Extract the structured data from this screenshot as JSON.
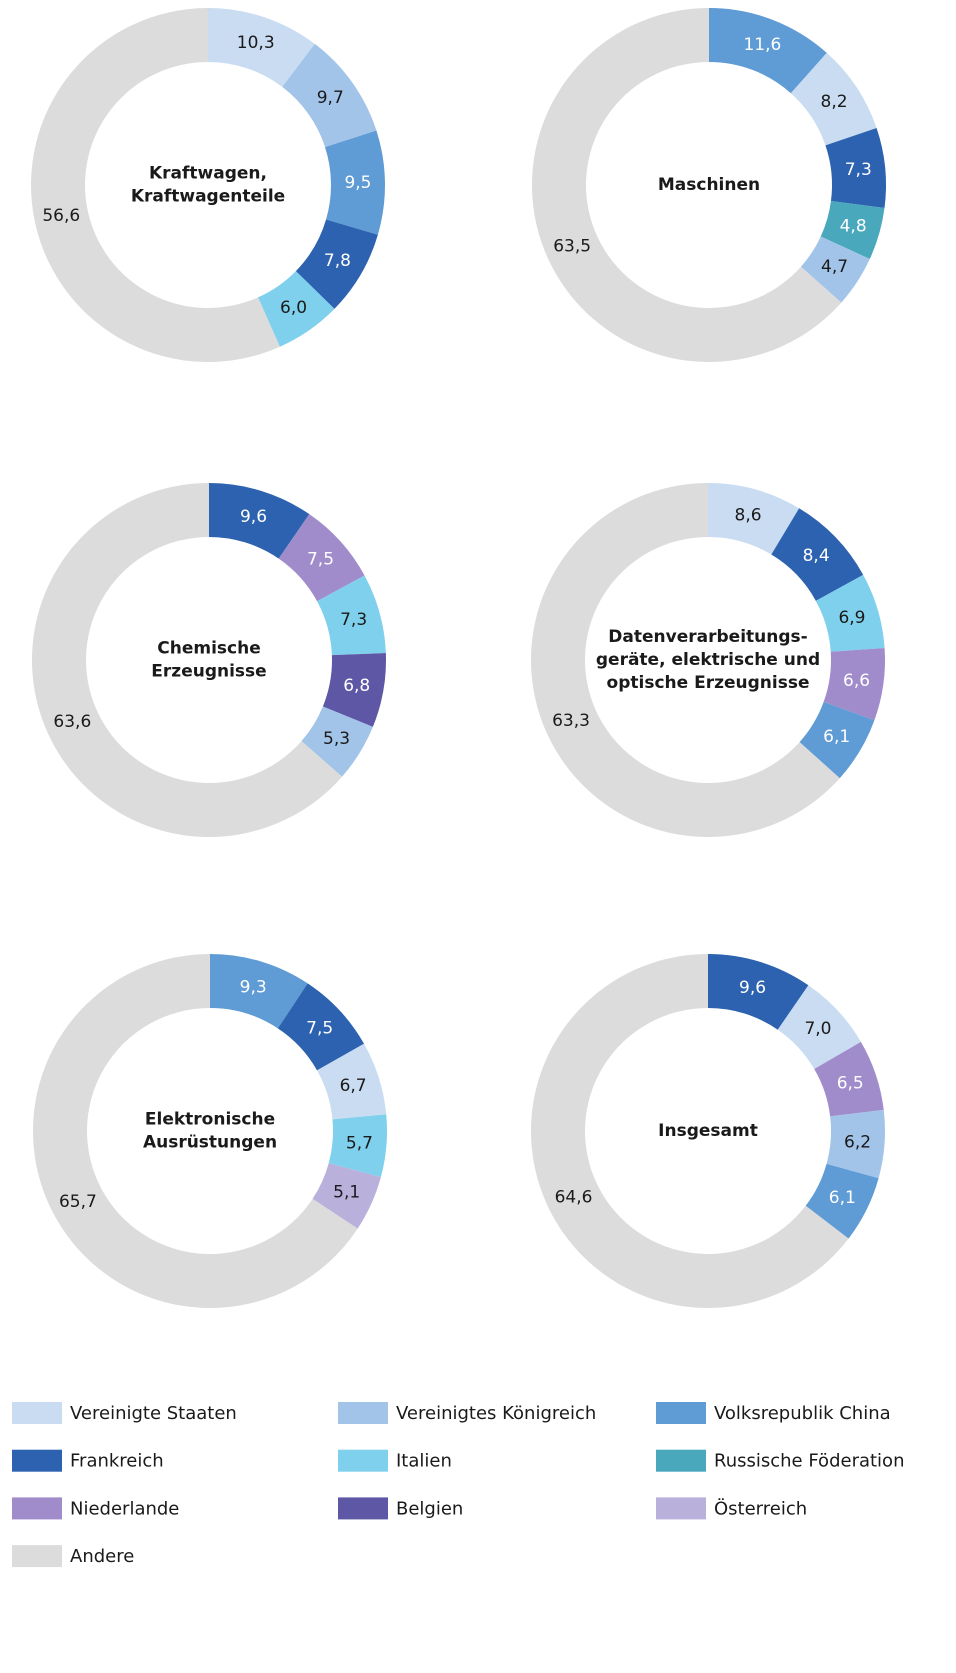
{
  "chart_data": [
    {
      "type": "pie",
      "title": [
        "Kraftwagen,",
        "Kraftwagenteile"
      ],
      "categories": [
        "Vereinigte Staaten",
        "Vereinigtes Königreich",
        "Volksrepublik China",
        "Frankreich",
        "Italien",
        "Andere"
      ],
      "values": [
        10.3,
        9.7,
        9.5,
        7.8,
        6.0,
        56.6
      ],
      "value_labels": [
        "10,3",
        "9,7",
        "9,5",
        "7,8",
        "6,0",
        "56,6"
      ]
    },
    {
      "type": "pie",
      "title": [
        "Maschinen"
      ],
      "categories": [
        "Volksrepublik China",
        "Vereinigte Staaten",
        "Frankreich",
        "Russische Föderation",
        "Vereinigtes Königreich",
        "Andere"
      ],
      "values": [
        11.6,
        8.2,
        7.3,
        4.8,
        4.7,
        63.5
      ],
      "value_labels": [
        "11,6",
        "8,2",
        "7,3",
        "4,8",
        "4,7",
        "63,5"
      ]
    },
    {
      "type": "pie",
      "title": [
        "Chemische",
        "Erzeugnisse"
      ],
      "categories": [
        "Frankreich",
        "Niederlande",
        "Italien",
        "Belgien",
        "Vereinigtes Königreich",
        "Andere"
      ],
      "values": [
        9.6,
        7.5,
        7.3,
        6.8,
        5.3,
        63.6
      ],
      "value_labels": [
        "9,6",
        "7,5",
        "7,3",
        "6,8",
        "5,3",
        "63,6"
      ]
    },
    {
      "type": "pie",
      "title": [
        "Datenverarbeitungs-",
        "geräte, elektrische und",
        "optische Erzeugnisse"
      ],
      "categories": [
        "Vereinigte Staaten",
        "Frankreich",
        "Italien",
        "Niederlande",
        "Volksrepublik China",
        "Andere"
      ],
      "values": [
        8.6,
        8.4,
        6.9,
        6.6,
        6.1,
        63.3
      ],
      "value_labels": [
        "8,6",
        "8,4",
        "6,9",
        "6,6",
        "6,1",
        "63,3"
      ]
    },
    {
      "type": "pie",
      "title": [
        "Elektronische",
        "Ausrüstungen"
      ],
      "categories": [
        "Volksrepublik China",
        "Frankreich",
        "Vereinigte Staaten",
        "Italien",
        "Österreich",
        "Andere"
      ],
      "values": [
        9.3,
        7.5,
        6.7,
        5.7,
        5.1,
        65.7
      ],
      "value_labels": [
        "9,3",
        "7,5",
        "6,7",
        "5,7",
        "5,1",
        "65,7"
      ]
    },
    {
      "type": "pie",
      "title": [
        "Insgesamt"
      ],
      "categories": [
        "Frankreich",
        "Vereinigte Staaten",
        "Niederlande",
        "Vereinigtes Königreich",
        "Volksrepublik China",
        "Andere"
      ],
      "values": [
        9.6,
        7.0,
        6.5,
        6.2,
        6.1,
        64.6
      ],
      "value_labels": [
        "9,6",
        "7,0",
        "6,5",
        "6,2",
        "6,1",
        "64,6"
      ]
    }
  ],
  "legend": {
    "entries": [
      {
        "name": "Vereinigte Staaten",
        "color": "#c9dcf2"
      },
      {
        "name": "Vereinigtes Königreich",
        "color": "#a3c4e9"
      },
      {
        "name": "Volksrepublik China",
        "color": "#5f9bd5"
      },
      {
        "name": "Frankreich",
        "color": "#2d62b0"
      },
      {
        "name": "Italien",
        "color": "#7fd0ed"
      },
      {
        "name": "Russische Föderation",
        "color": "#4aa8bd"
      },
      {
        "name": "Niederlande",
        "color": "#a08ccb"
      },
      {
        "name": "Belgien",
        "color": "#5e57a6"
      },
      {
        "name": "Österreich",
        "color": "#b9b0dc"
      },
      {
        "name": "Andere",
        "color": "#dcdcdc"
      }
    ]
  }
}
